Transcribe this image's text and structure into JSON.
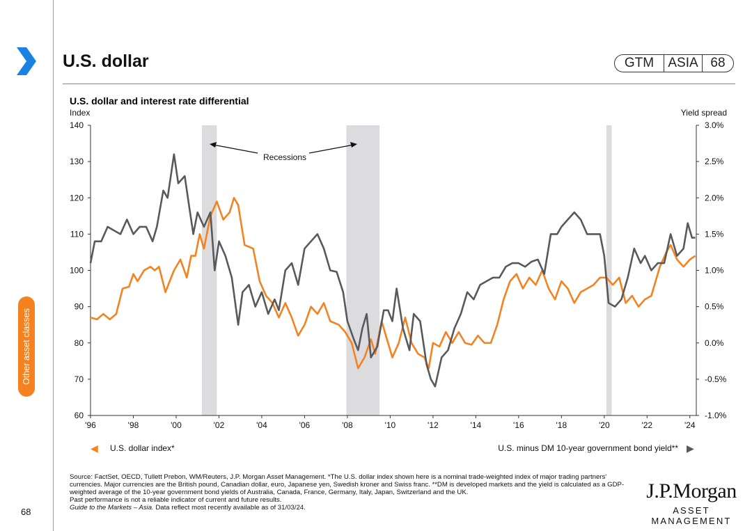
{
  "header": {
    "title": "U.S. dollar",
    "badge": [
      "GTM",
      "ASIA",
      "68"
    ]
  },
  "side_tab": "Other asset classes",
  "page_number": "68",
  "colors": {
    "accent": "#f58220",
    "dollar_line": "#f58220",
    "spread_line": "#58595b",
    "recession": "#dcdcdf",
    "chevron": "#1a82e2"
  },
  "chart_data": {
    "type": "line",
    "title": "U.S. dollar and interest rate differential",
    "left_axis": {
      "label": "Index",
      "ticks": [
        "140",
        "130",
        "120",
        "110",
        "100",
        "90",
        "80",
        "70",
        "60"
      ],
      "ylim": [
        60,
        140
      ]
    },
    "right_axis": {
      "label": "Yield spread",
      "ticks": [
        "3.0%",
        "2.5%",
        "2.0%",
        "1.5%",
        "1.0%",
        "0.5%",
        "0.0%",
        "-0.5%",
        "-1.0%"
      ],
      "ylim": [
        -1.0,
        3.0
      ]
    },
    "x_ticks": [
      "'96",
      "'98",
      "'00",
      "'02",
      "'04",
      "'06",
      "'08",
      "'10",
      "'12",
      "'14",
      "'16",
      "'18",
      "'20",
      "'22",
      "'24"
    ],
    "xlim": [
      1996,
      2024.3
    ],
    "recessions": [
      [
        2001.2,
        2001.9
      ],
      [
        2007.95,
        2009.5
      ],
      [
        2020.1,
        2020.35
      ]
    ],
    "annotation": "Recessions",
    "series": [
      {
        "name": "U.S. dollar index*",
        "axis": "left",
        "marker": "◀",
        "points": [
          [
            1996.0,
            87
          ],
          [
            1996.3,
            86.5
          ],
          [
            1996.6,
            88
          ],
          [
            1996.9,
            86.5
          ],
          [
            1997.2,
            88
          ],
          [
            1997.5,
            95
          ],
          [
            1997.8,
            95.5
          ],
          [
            1998.0,
            99
          ],
          [
            1998.2,
            97
          ],
          [
            1998.5,
            100
          ],
          [
            1998.8,
            101
          ],
          [
            1999.0,
            100
          ],
          [
            1999.2,
            101
          ],
          [
            1999.5,
            94
          ],
          [
            1999.7,
            97
          ],
          [
            1999.9,
            100
          ],
          [
            2000.2,
            103
          ],
          [
            2000.5,
            98
          ],
          [
            2000.7,
            104
          ],
          [
            2000.9,
            104
          ],
          [
            2001.1,
            110
          ],
          [
            2001.3,
            106
          ],
          [
            2001.6,
            115
          ],
          [
            2001.9,
            119
          ],
          [
            2002.2,
            114
          ],
          [
            2002.5,
            116
          ],
          [
            2002.7,
            120
          ],
          [
            2002.9,
            118
          ],
          [
            2003.2,
            107
          ],
          [
            2003.6,
            106
          ],
          [
            2003.9,
            97
          ],
          [
            2004.2,
            93
          ],
          [
            2004.5,
            91
          ],
          [
            2004.8,
            87
          ],
          [
            2005.1,
            91
          ],
          [
            2005.4,
            87
          ],
          [
            2005.7,
            82
          ],
          [
            2006.0,
            85
          ],
          [
            2006.3,
            90
          ],
          [
            2006.6,
            88
          ],
          [
            2006.9,
            91
          ],
          [
            2007.2,
            86
          ],
          [
            2007.6,
            85
          ],
          [
            2007.9,
            83
          ],
          [
            2008.2,
            80
          ],
          [
            2008.5,
            73
          ],
          [
            2008.8,
            76
          ],
          [
            2009.1,
            81
          ],
          [
            2009.3,
            77
          ],
          [
            2009.6,
            86
          ],
          [
            2009.8,
            82
          ],
          [
            2010.1,
            76
          ],
          [
            2010.4,
            80
          ],
          [
            2010.7,
            87
          ],
          [
            2011.0,
            80
          ],
          [
            2011.3,
            77
          ],
          [
            2011.6,
            76
          ],
          [
            2011.8,
            73
          ],
          [
            2012.0,
            80
          ],
          [
            2012.3,
            79
          ],
          [
            2012.6,
            83
          ],
          [
            2012.9,
            80
          ],
          [
            2013.2,
            83
          ],
          [
            2013.5,
            80
          ],
          [
            2013.8,
            79.5
          ],
          [
            2014.1,
            82
          ],
          [
            2014.4,
            80
          ],
          [
            2014.7,
            80
          ],
          [
            2015.0,
            85
          ],
          [
            2015.3,
            92
          ],
          [
            2015.6,
            97
          ],
          [
            2015.9,
            99
          ],
          [
            2016.2,
            95
          ],
          [
            2016.5,
            98
          ],
          [
            2016.8,
            96
          ],
          [
            2017.1,
            100
          ],
          [
            2017.4,
            95
          ],
          [
            2017.7,
            92
          ],
          [
            2018.0,
            97
          ],
          [
            2018.3,
            95
          ],
          [
            2018.6,
            91
          ],
          [
            2018.9,
            94
          ],
          [
            2019.2,
            95
          ],
          [
            2019.5,
            96
          ],
          [
            2019.8,
            98
          ],
          [
            2020.1,
            98
          ],
          [
            2020.4,
            96
          ],
          [
            2020.7,
            98
          ],
          [
            2021.0,
            91
          ],
          [
            2021.3,
            93
          ],
          [
            2021.6,
            90
          ],
          [
            2021.9,
            92
          ],
          [
            2022.2,
            93
          ],
          [
            2022.6,
            101
          ],
          [
            2022.9,
            105
          ],
          [
            2023.1,
            107
          ],
          [
            2023.4,
            103
          ],
          [
            2023.7,
            101
          ],
          [
            2024.0,
            103
          ],
          [
            2024.25,
            104
          ]
        ]
      },
      {
        "name": "U.S. minus DM 10-year government bond yield**",
        "axis": "right",
        "marker": "▶",
        "points": [
          [
            1996.0,
            1.1
          ],
          [
            1996.2,
            1.4
          ],
          [
            1996.5,
            1.4
          ],
          [
            1996.8,
            1.6
          ],
          [
            1997.1,
            1.55
          ],
          [
            1997.4,
            1.5
          ],
          [
            1997.7,
            1.7
          ],
          [
            1998.0,
            1.5
          ],
          [
            1998.3,
            1.6
          ],
          [
            1998.6,
            1.6
          ],
          [
            1998.9,
            1.4
          ],
          [
            1999.1,
            1.6
          ],
          [
            1999.4,
            2.1
          ],
          [
            1999.6,
            2.0
          ],
          [
            1999.9,
            2.6
          ],
          [
            2000.1,
            2.2
          ],
          [
            2000.4,
            2.3
          ],
          [
            2000.6,
            1.9
          ],
          [
            2000.8,
            1.5
          ],
          [
            2001.0,
            1.8
          ],
          [
            2001.3,
            1.6
          ],
          [
            2001.6,
            1.8
          ],
          [
            2001.8,
            1.0
          ],
          [
            2002.0,
            1.4
          ],
          [
            2002.3,
            1.2
          ],
          [
            2002.6,
            0.9
          ],
          [
            2002.9,
            0.25
          ],
          [
            2003.1,
            0.7
          ],
          [
            2003.4,
            0.8
          ],
          [
            2003.7,
            0.5
          ],
          [
            2004.0,
            0.7
          ],
          [
            2004.3,
            0.4
          ],
          [
            2004.6,
            0.6
          ],
          [
            2004.8,
            0.45
          ],
          [
            2005.1,
            1.0
          ],
          [
            2005.4,
            1.1
          ],
          [
            2005.7,
            0.8
          ],
          [
            2006.0,
            1.3
          ],
          [
            2006.3,
            1.4
          ],
          [
            2006.6,
            1.5
          ],
          [
            2006.9,
            1.3
          ],
          [
            2007.2,
            1.0
          ],
          [
            2007.5,
            0.98
          ],
          [
            2007.8,
            0.7
          ],
          [
            2008.0,
            0.3
          ],
          [
            2008.3,
            0.05
          ],
          [
            2008.5,
            -0.1
          ],
          [
            2008.7,
            0.2
          ],
          [
            2008.9,
            0.4
          ],
          [
            2009.1,
            -0.2
          ],
          [
            2009.4,
            -0.05
          ],
          [
            2009.7,
            0.45
          ],
          [
            2009.9,
            0.45
          ],
          [
            2010.1,
            0.3
          ],
          [
            2010.3,
            0.75
          ],
          [
            2010.6,
            0.2
          ],
          [
            2010.9,
            -0.1
          ],
          [
            2011.1,
            0.4
          ],
          [
            2011.4,
            0.3
          ],
          [
            2011.7,
            -0.3
          ],
          [
            2011.9,
            -0.5
          ],
          [
            2012.1,
            -0.6
          ],
          [
            2012.4,
            -0.2
          ],
          [
            2012.7,
            -0.1
          ],
          [
            2013.0,
            0.2
          ],
          [
            2013.3,
            0.4
          ],
          [
            2013.6,
            0.7
          ],
          [
            2013.9,
            0.6
          ],
          [
            2014.2,
            0.8
          ],
          [
            2014.5,
            0.85
          ],
          [
            2014.8,
            0.9
          ],
          [
            2015.1,
            0.9
          ],
          [
            2015.4,
            1.05
          ],
          [
            2015.7,
            1.1
          ],
          [
            2016.0,
            1.1
          ],
          [
            2016.3,
            1.05
          ],
          [
            2016.6,
            1.12
          ],
          [
            2016.9,
            1.15
          ],
          [
            2017.2,
            0.95
          ],
          [
            2017.5,
            1.5
          ],
          [
            2017.8,
            1.5
          ],
          [
            2018.0,
            1.6
          ],
          [
            2018.3,
            1.7
          ],
          [
            2018.6,
            1.8
          ],
          [
            2018.9,
            1.7
          ],
          [
            2019.2,
            1.5
          ],
          [
            2019.5,
            1.5
          ],
          [
            2019.8,
            1.5
          ],
          [
            2020.0,
            1.2
          ],
          [
            2020.2,
            0.55
          ],
          [
            2020.5,
            0.5
          ],
          [
            2020.8,
            0.6
          ],
          [
            2021.1,
            0.9
          ],
          [
            2021.4,
            1.3
          ],
          [
            2021.7,
            1.1
          ],
          [
            2021.9,
            1.2
          ],
          [
            2022.2,
            1.0
          ],
          [
            2022.5,
            1.1
          ],
          [
            2022.8,
            1.1
          ],
          [
            2023.1,
            1.5
          ],
          [
            2023.4,
            1.2
          ],
          [
            2023.7,
            1.3
          ],
          [
            2023.9,
            1.65
          ],
          [
            2024.1,
            1.45
          ],
          [
            2024.25,
            1.45
          ]
        ]
      }
    ]
  },
  "footer": {
    "source": "Source: FactSet, OECD, Tullett Prebon, WM/Reuters, J.P. Morgan Asset Management. *The U.S. dollar index shown here is a nominal trade-weighted index of major trading partners' currencies. Major currencies are the British pound, Canadian dollar, euro, Japanese yen, Swedish kroner and Swiss franc. **DM is developed markets and the yield is calculated as a GDP-weighted average of the 10-year government bond yields of Australia, Canada, France, Germany, Italy, Japan, Switzerland and the UK.",
    "disclaimer": "Past performance is not a reliable indicator of current and future results.",
    "guide": "Guide to the Markets – Asia.",
    "data_note": " Data reflect most recently available as of 31/03/24."
  },
  "logo": {
    "line1": "J.P.Morgan",
    "line2": "ASSET MANAGEMENT"
  }
}
